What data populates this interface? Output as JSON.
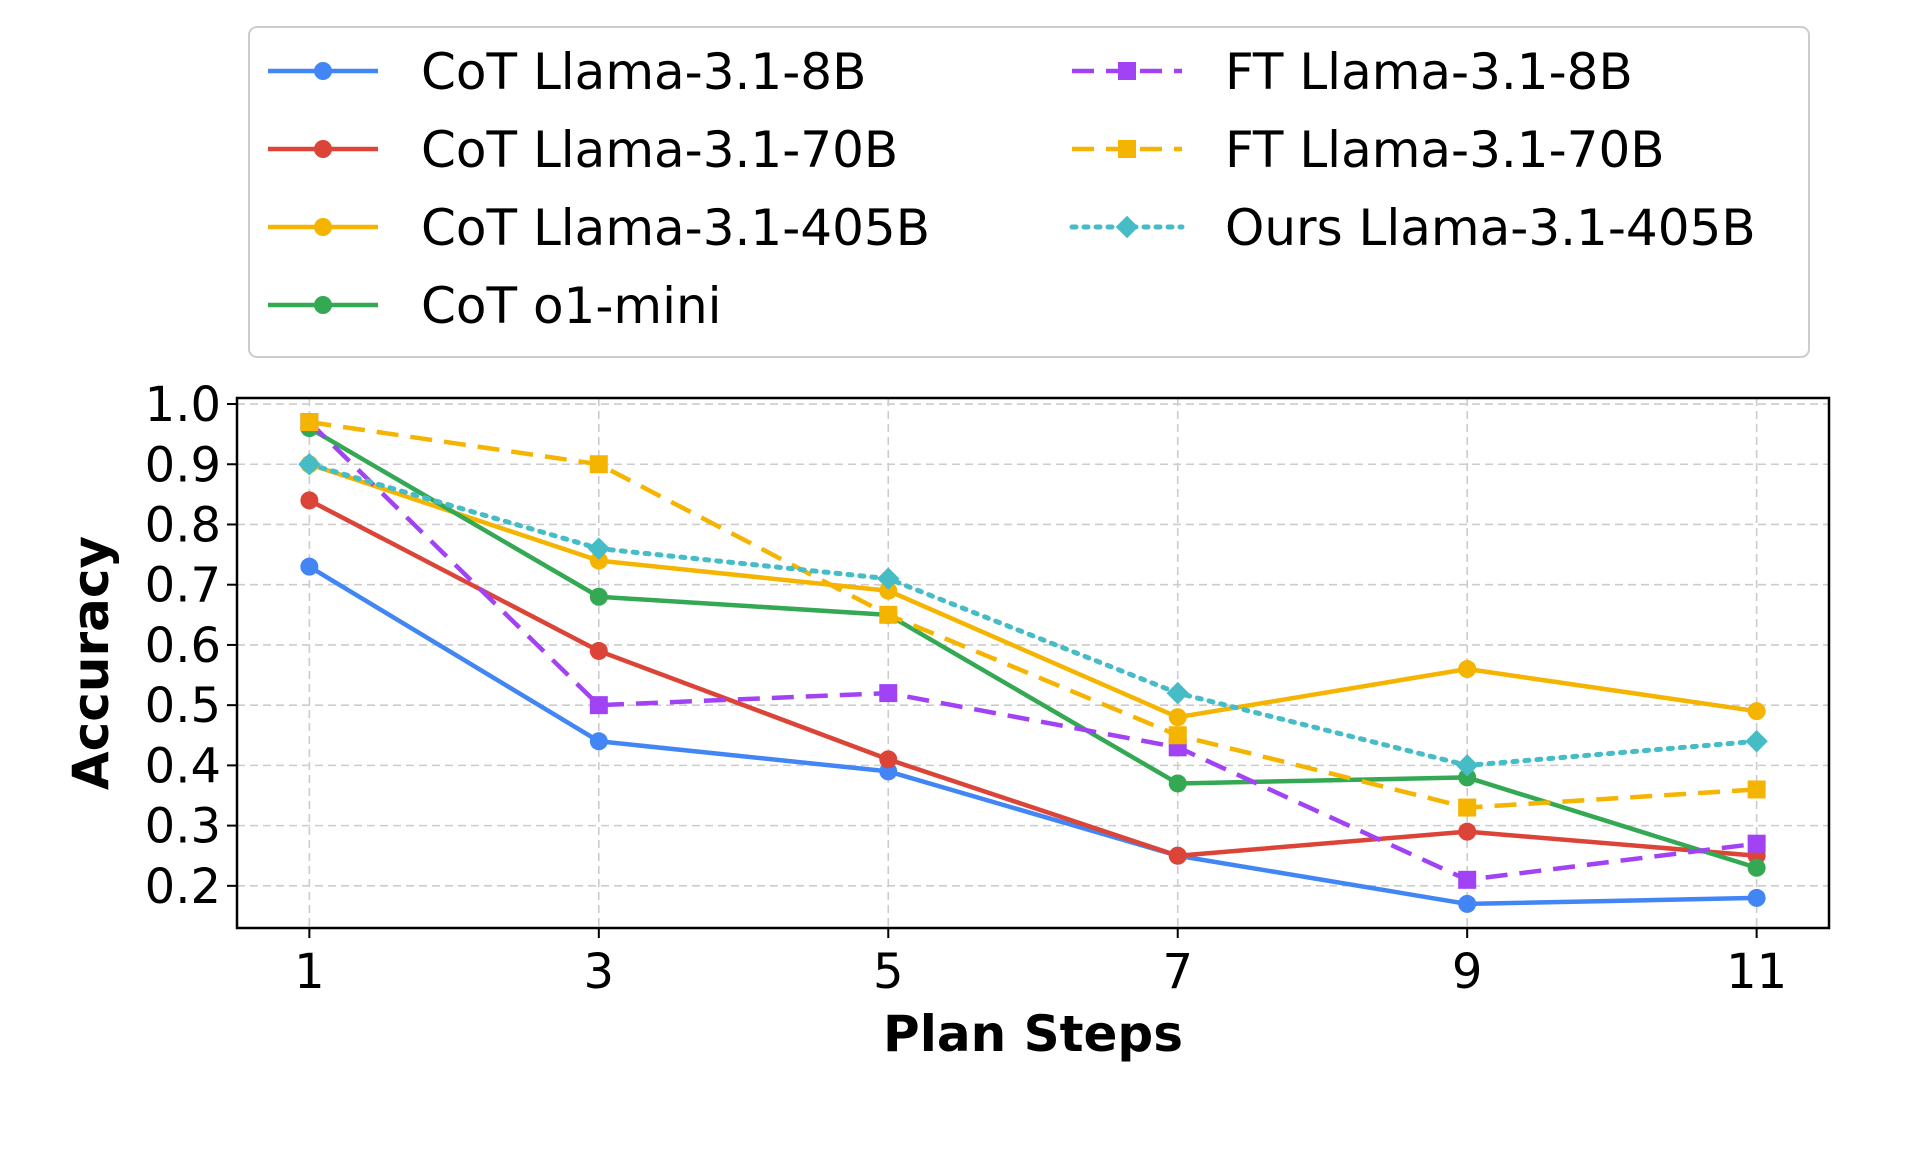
{
  "chart_data": {
    "type": "line",
    "xlabel": "Plan Steps",
    "ylabel": "Accuracy",
    "x": [
      1,
      3,
      5,
      7,
      9,
      11
    ],
    "xticks": [
      "1",
      "3",
      "5",
      "7",
      "9",
      "11"
    ],
    "yticks": [
      "0.2",
      "0.3",
      "0.4",
      "0.5",
      "0.6",
      "0.7",
      "0.8",
      "0.9",
      "1.0"
    ],
    "xlim": [
      0.5,
      11.5
    ],
    "ylim": [
      0.13,
      1.01
    ],
    "grid": true,
    "legend_position": "top",
    "series": [
      {
        "name": "CoT Llama-3.1-8B",
        "color": "#4285f4",
        "style": "solid",
        "marker": "circle",
        "values": [
          0.73,
          0.44,
          0.39,
          0.25,
          0.17,
          0.18
        ]
      },
      {
        "name": "CoT Llama-3.1-70B",
        "color": "#db4437",
        "style": "solid",
        "marker": "circle",
        "values": [
          0.84,
          0.59,
          0.41,
          0.25,
          0.29,
          0.25
        ]
      },
      {
        "name": "CoT Llama-3.1-405B",
        "color": "#f4b400",
        "style": "solid",
        "marker": "circle",
        "values": [
          0.9,
          0.74,
          0.69,
          0.48,
          0.56,
          0.49
        ]
      },
      {
        "name": "CoT o1-mini",
        "color": "#34a853",
        "style": "solid",
        "marker": "circle",
        "values": [
          0.96,
          0.68,
          0.65,
          0.37,
          0.38,
          0.23
        ]
      },
      {
        "name": "FT Llama-3.1-8B",
        "color": "#a142f4",
        "style": "dashed",
        "marker": "square",
        "values": [
          0.97,
          0.5,
          0.52,
          0.43,
          0.21,
          0.27
        ]
      },
      {
        "name": "FT Llama-3.1-70B",
        "color": "#f4b400",
        "style": "dashed",
        "marker": "square",
        "values": [
          0.97,
          0.9,
          0.65,
          0.45,
          0.33,
          0.36
        ]
      },
      {
        "name": "Ours Llama-3.1-405B",
        "color": "#46bdc6",
        "style": "dotted",
        "marker": "diamond",
        "values": [
          0.9,
          0.76,
          0.71,
          0.52,
          0.4,
          0.44
        ]
      }
    ]
  }
}
